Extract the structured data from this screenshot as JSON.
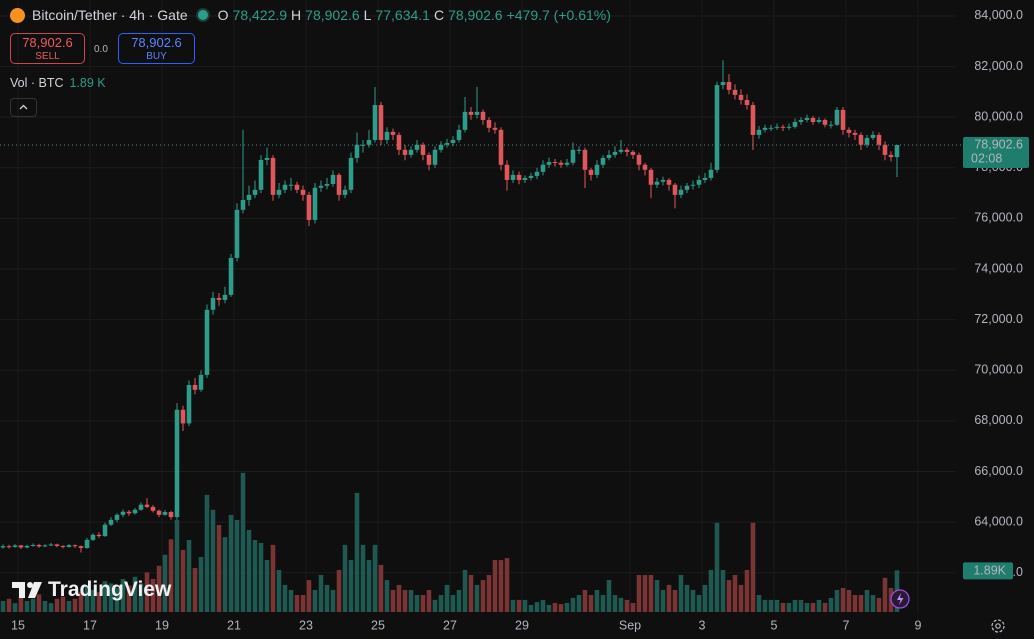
{
  "header": {
    "title": "Bitcoin/Tether · 4h · Gate",
    "o_label": "O",
    "open": "78,422.9",
    "h_label": "H",
    "high": "78,902.6",
    "l_label": "L",
    "low": "77,634.1",
    "c_label": "C",
    "close": "78,902.6",
    "change": "+479.7 (+0.61%)",
    "sell_price": "78,902.6",
    "sell": "SELL",
    "spread": "0.0",
    "buy_price": "78,902.6",
    "buy": "BUY",
    "volume_name": "Vol · BTC",
    "volume_value": "1.89 K",
    "watermark": "TradingView"
  },
  "chart_data": {
    "type": "candlestick",
    "up_color": "#2e9c8a",
    "down_color": "#e0575b",
    "volume_up_color": "#1f5a52",
    "volume_down_color": "#7a3434",
    "last_price_label": "78,902.6",
    "countdown": "02:08",
    "last_volume_label": "1.89K",
    "ylim": [
      60450,
      84630
    ],
    "yticks": [
      {
        "value": 84000,
        "label": "84,000.0"
      },
      {
        "value": 82000,
        "label": "82,000.0"
      },
      {
        "value": 80000,
        "label": "80,000.0"
      },
      {
        "value": 78000,
        "label": "78,000.0"
      },
      {
        "value": 76000,
        "label": "76,000.0"
      },
      {
        "value": 74000,
        "label": "74,000.0"
      },
      {
        "value": 72000,
        "label": "72,000.0"
      },
      {
        "value": 70000,
        "label": "70,000.0"
      },
      {
        "value": 68000,
        "label": "68,000.0"
      },
      {
        "value": 66000,
        "label": "66,000.0"
      },
      {
        "value": 64000,
        "label": "64,000.0"
      },
      {
        "value": 62000,
        "label": "62,000.0"
      }
    ],
    "xlim": [
      -0.5,
      158.67
    ],
    "xticks": [
      {
        "value": 2.5,
        "label": "15"
      },
      {
        "value": 14.5,
        "label": "17"
      },
      {
        "value": 26.5,
        "label": "19"
      },
      {
        "value": 38.5,
        "label": "21"
      },
      {
        "value": 50.5,
        "label": "23"
      },
      {
        "value": 62.5,
        "label": "25"
      },
      {
        "value": 74.5,
        "label": "27"
      },
      {
        "value": 86.5,
        "label": "29"
      },
      {
        "value": 104.5,
        "label": "Sep"
      },
      {
        "value": 116.5,
        "label": "3"
      },
      {
        "value": 128.5,
        "label": "5"
      },
      {
        "value": 140.5,
        "label": "7"
      },
      {
        "value": 152.5,
        "label": "9"
      }
    ],
    "volume_lim": [
      0,
      27.8
    ],
    "grid": true,
    "ohlc": [
      [
        63000,
        63120,
        62950,
        63050
      ],
      [
        63050,
        63110,
        62960,
        63020
      ],
      [
        63020,
        63130,
        62990,
        63080
      ],
      [
        63080,
        63100,
        62940,
        63000
      ],
      [
        63000,
        63110,
        62970,
        63060
      ],
      [
        63060,
        63160,
        63030,
        63100
      ],
      [
        63100,
        63140,
        62990,
        63040
      ],
      [
        63040,
        63130,
        63010,
        63080
      ],
      [
        63080,
        63180,
        63050,
        63120
      ],
      [
        63120,
        63150,
        63010,
        63060
      ],
      [
        63060,
        63090,
        62960,
        63020
      ],
      [
        63020,
        63140,
        62990,
        63090
      ],
      [
        63090,
        63120,
        62980,
        63050
      ],
      [
        63050,
        63080,
        62800,
        62980
      ],
      [
        62980,
        63380,
        62950,
        63300
      ],
      [
        63300,
        63560,
        63250,
        63500
      ],
      [
        63500,
        63600,
        63380,
        63450
      ],
      [
        63450,
        63980,
        63420,
        63900
      ],
      [
        63900,
        64200,
        63850,
        64090
      ],
      [
        64090,
        64350,
        64000,
        64290
      ],
      [
        64290,
        64500,
        64200,
        64410
      ],
      [
        64410,
        64480,
        64250,
        64350
      ],
      [
        64350,
        64560,
        64300,
        64490
      ],
      [
        64490,
        64780,
        64450,
        64690
      ],
      [
        64690,
        64950,
        64550,
        64600
      ],
      [
        64600,
        64680,
        64380,
        64450
      ],
      [
        64450,
        64500,
        64200,
        64290
      ],
      [
        64290,
        64480,
        64250,
        64400
      ],
      [
        64400,
        64450,
        64100,
        64200
      ],
      [
        64200,
        68700,
        64090,
        68440
      ],
      [
        68440,
        68600,
        67600,
        67900
      ],
      [
        67900,
        69600,
        67800,
        69420
      ],
      [
        69420,
        69700,
        69050,
        69230
      ],
      [
        69230,
        70000,
        69150,
        69820
      ],
      [
        69820,
        72600,
        69700,
        72390
      ],
      [
        72390,
        73100,
        72200,
        72860
      ],
      [
        72860,
        73050,
        72550,
        72780
      ],
      [
        72780,
        73300,
        72650,
        72980
      ],
      [
        72980,
        74600,
        72900,
        74440
      ],
      [
        74440,
        76600,
        74300,
        76340
      ],
      [
        76340,
        79500,
        76200,
        76730
      ],
      [
        76730,
        77300,
        76500,
        76930
      ],
      [
        76930,
        77500,
        76800,
        77130
      ],
      [
        77130,
        78500,
        77000,
        78310
      ],
      [
        78310,
        78800,
        78100,
        78390
      ],
      [
        78390,
        78500,
        76700,
        76930
      ],
      [
        76930,
        77400,
        76800,
        77130
      ],
      [
        77130,
        77500,
        77000,
        77330
      ],
      [
        77330,
        77600,
        77100,
        77330
      ],
      [
        77330,
        77450,
        77000,
        77130
      ],
      [
        77130,
        77300,
        76700,
        76930
      ],
      [
        76930,
        77050,
        75700,
        75940
      ],
      [
        75940,
        77400,
        75800,
        77210
      ],
      [
        77210,
        77500,
        77050,
        77290
      ],
      [
        77290,
        77600,
        77150,
        77360
      ],
      [
        77360,
        77900,
        77250,
        77720
      ],
      [
        77720,
        77800,
        76700,
        76930
      ],
      [
        76930,
        77300,
        76800,
        77130
      ],
      [
        77130,
        78600,
        77000,
        78390
      ],
      [
        78390,
        79400,
        78200,
        78910
      ],
      [
        78910,
        79100,
        78600,
        78910
      ],
      [
        78910,
        79500,
        78800,
        79100
      ],
      [
        79100,
        81190,
        79000,
        80480
      ],
      [
        80480,
        80600,
        78900,
        79100
      ],
      [
        79100,
        79600,
        78950,
        79420
      ],
      [
        79420,
        79550,
        79100,
        79300
      ],
      [
        79300,
        79400,
        78500,
        78710
      ],
      [
        78710,
        78900,
        78300,
        78510
      ],
      [
        78510,
        78850,
        78400,
        78710
      ],
      [
        78710,
        79100,
        78600,
        78910
      ],
      [
        78910,
        79000,
        78300,
        78510
      ],
      [
        78510,
        78600,
        77900,
        78120
      ],
      [
        78120,
        78850,
        78000,
        78710
      ],
      [
        78710,
        79050,
        78600,
        78910
      ],
      [
        78910,
        79150,
        78800,
        78980
      ],
      [
        78980,
        79250,
        78850,
        79100
      ],
      [
        79100,
        79700,
        79000,
        79500
      ],
      [
        79500,
        80800,
        79400,
        80210
      ],
      [
        80210,
        80400,
        79900,
        80090
      ],
      [
        80090,
        81200,
        79950,
        80210
      ],
      [
        80210,
        80300,
        79700,
        79890
      ],
      [
        79890,
        80000,
        79400,
        79580
      ],
      [
        79580,
        79800,
        79350,
        79500
      ],
      [
        79500,
        79600,
        77900,
        78120
      ],
      [
        78120,
        78300,
        77100,
        77520
      ],
      [
        77520,
        77900,
        77400,
        77720
      ],
      [
        77720,
        77850,
        77350,
        77520
      ],
      [
        77520,
        77700,
        77400,
        77600
      ],
      [
        77600,
        77800,
        77500,
        77680
      ],
      [
        77680,
        78000,
        77550,
        77840
      ],
      [
        77840,
        78300,
        77700,
        78120
      ],
      [
        78120,
        78400,
        78000,
        78230
      ],
      [
        78230,
        78350,
        78050,
        78200
      ],
      [
        78200,
        78300,
        78000,
        78120
      ],
      [
        78120,
        78350,
        78050,
        78200
      ],
      [
        78200,
        79000,
        78100,
        78710
      ],
      [
        78710,
        78850,
        78550,
        78710
      ],
      [
        78710,
        78800,
        77200,
        77920
      ],
      [
        77920,
        78000,
        77500,
        77720
      ],
      [
        77720,
        78300,
        77600,
        78120
      ],
      [
        78120,
        78500,
        78000,
        78390
      ],
      [
        78390,
        78700,
        78300,
        78510
      ],
      [
        78510,
        78850,
        78400,
        78630
      ],
      [
        78630,
        79100,
        78550,
        78710
      ],
      [
        78710,
        78800,
        78450,
        78630
      ],
      [
        78630,
        78700,
        78350,
        78510
      ],
      [
        78510,
        78600,
        77900,
        78120
      ],
      [
        78120,
        78200,
        77700,
        77920
      ],
      [
        77920,
        78000,
        76800,
        77330
      ],
      [
        77330,
        77600,
        77200,
        77450
      ],
      [
        77450,
        77650,
        77300,
        77520
      ],
      [
        77520,
        77600,
        77100,
        77330
      ],
      [
        77330,
        77400,
        76400,
        76930
      ],
      [
        76930,
        77300,
        76800,
        77130
      ],
      [
        77130,
        77400,
        77000,
        77290
      ],
      [
        77290,
        77500,
        77150,
        77330
      ],
      [
        77330,
        77700,
        77200,
        77520
      ],
      [
        77520,
        77800,
        77400,
        77600
      ],
      [
        77600,
        78200,
        77500,
        77920
      ],
      [
        77920,
        81400,
        77800,
        81270
      ],
      [
        81270,
        82250,
        81100,
        81390
      ],
      [
        81390,
        81700,
        80900,
        81080
      ],
      [
        81080,
        81300,
        80700,
        80880
      ],
      [
        80880,
        81100,
        80500,
        80680
      ],
      [
        80680,
        80900,
        80300,
        80480
      ],
      [
        80480,
        80600,
        78700,
        79300
      ],
      [
        79300,
        79650,
        79150,
        79500
      ],
      [
        79500,
        79700,
        79400,
        79580
      ],
      [
        79580,
        79700,
        79450,
        79580
      ],
      [
        79580,
        79750,
        79500,
        79620
      ],
      [
        79620,
        79700,
        79450,
        79580
      ],
      [
        79580,
        79750,
        79500,
        79620
      ],
      [
        79620,
        79950,
        79550,
        79810
      ],
      [
        79810,
        80000,
        79700,
        79890
      ],
      [
        79890,
        80100,
        79800,
        79970
      ],
      [
        79970,
        80050,
        79700,
        79810
      ],
      [
        79810,
        80000,
        79750,
        79890
      ],
      [
        79890,
        79950,
        79600,
        79700
      ],
      [
        79700,
        79850,
        79550,
        79700
      ],
      [
        79700,
        80400,
        79650,
        80290
      ],
      [
        80290,
        80400,
        79300,
        79500
      ],
      [
        79500,
        79600,
        79200,
        79380
      ],
      [
        79380,
        79500,
        79100,
        79300
      ],
      [
        79300,
        79400,
        78700,
        78910
      ],
      [
        78910,
        79300,
        78800,
        79180
      ],
      [
        79180,
        79450,
        79100,
        79300
      ],
      [
        79300,
        79400,
        78700,
        78910
      ],
      [
        78910,
        79050,
        78300,
        78510
      ],
      [
        78510,
        78650,
        78250,
        78422.9
      ],
      [
        78422.9,
        78902.6,
        77634.1,
        78902.6
      ]
    ],
    "volume": [
      0.5,
      0.6,
      0.4,
      0.7,
      0.5,
      0.6,
      0.8,
      0.5,
      0.4,
      0.6,
      0.7,
      0.5,
      0.6,
      0.9,
      1.2,
      1.0,
      0.9,
      1.4,
      1.3,
      1.1,
      1.5,
      1.2,
      1.6,
      1.3,
      1.8,
      1.5,
      2.1,
      2.6,
      3.3,
      4.18,
      2.82,
      3.27,
      2.0,
      2.5,
      5.32,
      4.64,
      3.95,
      3.4,
      4.41,
      4.18,
      6.32,
      3.73,
      3.27,
      3.14,
      2.36,
      3.05,
      1.91,
      1.23,
      1.0,
      0.77,
      0.77,
      1.45,
      1.0,
      1.68,
      1.23,
      1.0,
      1.91,
      3.05,
      2.36,
      5.41,
      3.05,
      2.36,
      3.05,
      2.14,
      1.45,
      1.0,
      1.23,
      1.0,
      1.0,
      0.77,
      0.77,
      1.0,
      0.55,
      0.77,
      1.23,
      0.77,
      1.0,
      1.91,
      1.68,
      1.23,
      1.45,
      1.68,
      2.36,
      2.36,
      2.45,
      0.55,
      0.55,
      0.55,
      0.32,
      0.45,
      0.55,
      0.32,
      0.41,
      0.36,
      0.41,
      0.64,
      0.77,
      1.0,
      0.77,
      1.0,
      0.77,
      1.45,
      0.77,
      0.64,
      0.55,
      0.41,
      1.68,
      1.68,
      1.68,
      1.45,
      1.0,
      1.23,
      1.0,
      1.68,
      1.23,
      1.0,
      0.77,
      1.23,
      1.91,
      4.05,
      1.91,
      1.45,
      1.68,
      1.23,
      1.91,
      4.05,
      0.77,
      0.55,
      0.55,
      0.55,
      0.41,
      0.41,
      0.55,
      0.55,
      0.41,
      0.41,
      0.55,
      0.41,
      0.64,
      1.0,
      1.09,
      1.0,
      0.77,
      0.77,
      1.0,
      0.77,
      0.64,
      1.55,
      1.09,
      1.89
    ]
  }
}
